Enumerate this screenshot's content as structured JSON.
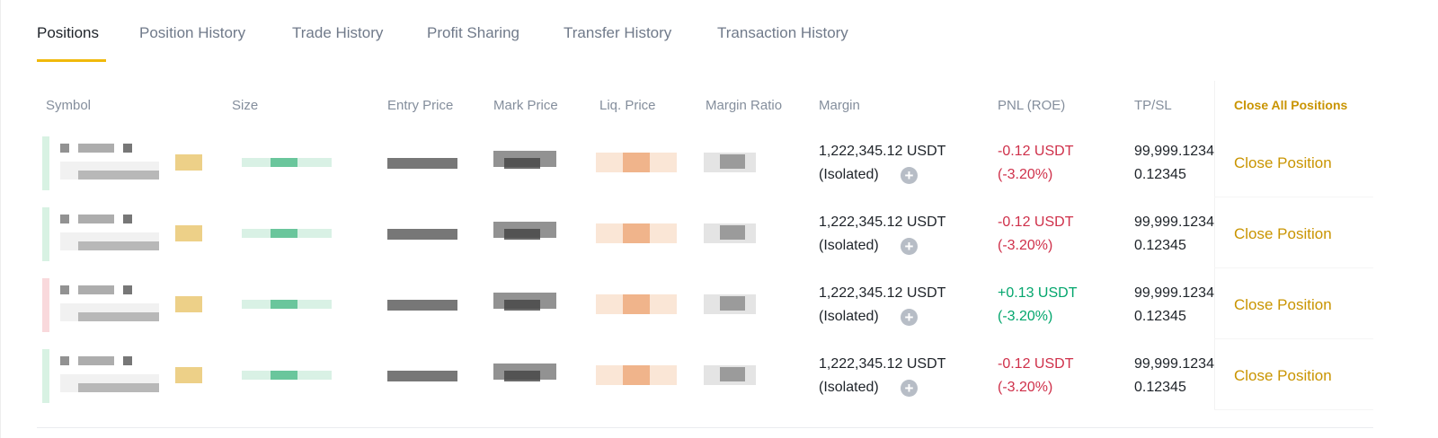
{
  "tabs": [
    "Positions",
    "Position History",
    "Trade History",
    "Profit Sharing",
    "Transfer History",
    "Transaction History"
  ],
  "table": {
    "headers": [
      "Symbol",
      "Size",
      "Entry Price",
      "Mark Price",
      "Liq. Price",
      "Margin Ratio",
      "Margin",
      "PNL (ROE)",
      "TP/SL",
      "Close All Positions"
    ],
    "rows": [
      {
        "margin": "1,222,345.12 USDT",
        "mode": "(Isolated)",
        "pnl": "-0.12 USDT",
        "roe": "(-3.20%)",
        "tp": "99,999.1234",
        "sl": "0.12345",
        "action": "Close Position"
      },
      {
        "margin": "1,222,345.12 USDT",
        "mode": "(Isolated)",
        "pnl": "-0.12 USDT",
        "roe": "(-3.20%)",
        "tp": "99,999.1234",
        "sl": "0.12345",
        "action": "Close Position"
      },
      {
        "margin": "1,222,345.12 USDT",
        "mode": "(Isolated)",
        "pnl": "+0.13 USDT",
        "roe": "(-3.20%)",
        "tp": "99,999.1234",
        "sl": "0.12345",
        "action": "Close Position"
      },
      {
        "margin": "1,222,345.12 USDT",
        "mode": "(Isolated)",
        "pnl": "-0.12 USDT",
        "roe": "(-3.20%)",
        "tp": "99,999.1234",
        "sl": "0.12345",
        "action": "Close Position"
      }
    ]
  }
}
